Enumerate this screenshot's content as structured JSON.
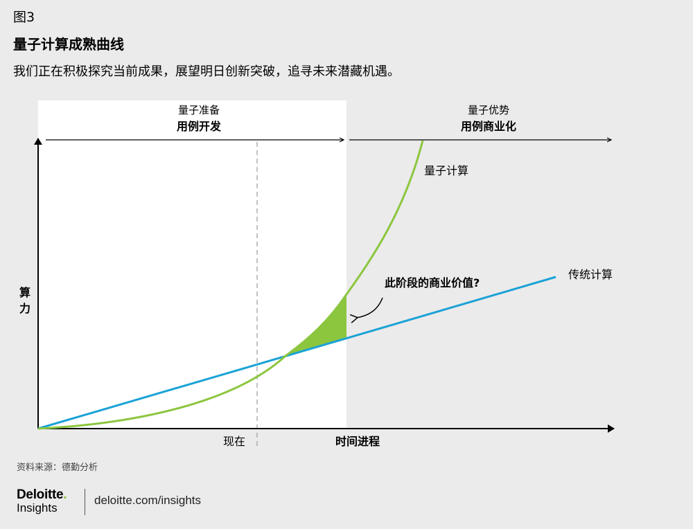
{
  "figure_label": "图3",
  "title": "量子计算成熟曲线",
  "subtitle": "我们正在积极探究当前成果，展望明日创新突破，追寻未来潜藏机遇。",
  "phases": [
    {
      "label": "量子准备",
      "sublabel": "用例开发"
    },
    {
      "label": "量子优势",
      "sublabel": "用例商业化"
    }
  ],
  "axes": {
    "y_label_line1": "算",
    "y_label_line2": "力",
    "x_tick_now": "现在",
    "x_label": "时间进程"
  },
  "series": {
    "quantum": "量子计算",
    "classical": "传统计算"
  },
  "annotation": "此阶段的商业价值?",
  "colors": {
    "quantum": "#8cc63f",
    "classical": "#1aa2d6",
    "shaded_area": "#8cc63f",
    "phase_panel": "#ffffff",
    "background": "#ebebeb"
  },
  "source": "资料来源：德勤分析",
  "brand": {
    "name": "Deloitte",
    "dot": ".",
    "sub": "Insights",
    "url": "deloitte.com/insights"
  }
}
